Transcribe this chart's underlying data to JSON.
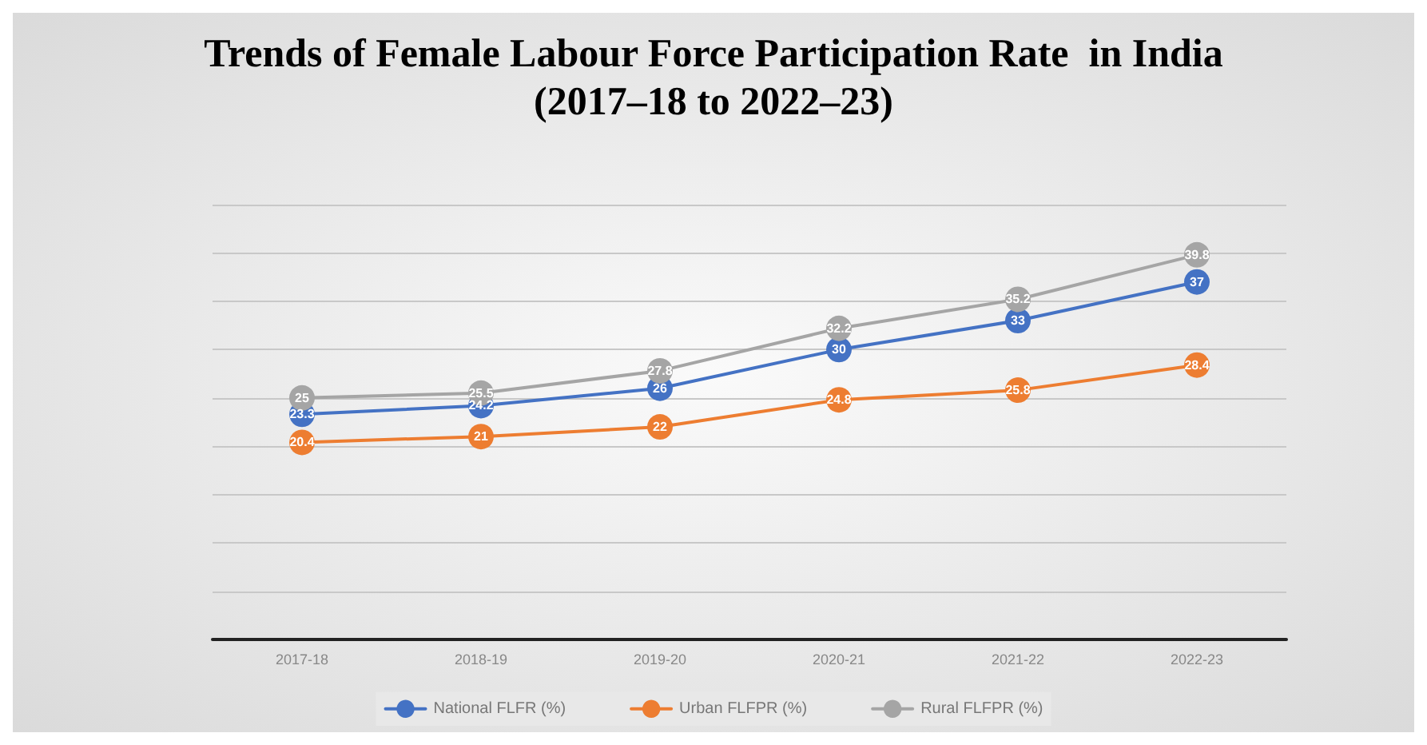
{
  "chart_data": {
    "type": "line",
    "title": "Trends of Female Labour Force Participation Rate  in India\n(2017–18 to 2022–23)",
    "categories": [
      "2017-18",
      "2018-19",
      "2019-20",
      "2020-21",
      "2021-22",
      "2022-23"
    ],
    "series": [
      {
        "name": "National FLFR (%)",
        "color": "#4472c4",
        "values": [
          23.3,
          24.2,
          26,
          30,
          33,
          37
        ]
      },
      {
        "name": "Urban FLFPR (%)",
        "color": "#ed7d31",
        "values": [
          20.4,
          21,
          22,
          24.8,
          25.8,
          28.4
        ]
      },
      {
        "name": "Rural FLFPR (%)",
        "color": "#a5a5a5",
        "values": [
          25,
          25.5,
          27.8,
          32.2,
          35.2,
          39.8
        ]
      }
    ],
    "ylim": [
      0,
      45
    ],
    "yticks": [
      {
        "value": 0,
        "label": null
      },
      {
        "value": 5,
        "label": null
      },
      {
        "value": 10,
        "label": null
      },
      {
        "value": 15,
        "label": null
      },
      {
        "value": 20,
        "label": null
      },
      {
        "value": 25,
        "label": null
      },
      {
        "value": 30,
        "label": null
      },
      {
        "value": 35,
        "label": null
      },
      {
        "value": 40,
        "label": null
      },
      {
        "value": 45,
        "label": null
      }
    ],
    "tick_labels": "x",
    "grid": "y",
    "legend": "bottom",
    "marker": "circle",
    "line_style": "solid",
    "data_labels": true
  }
}
